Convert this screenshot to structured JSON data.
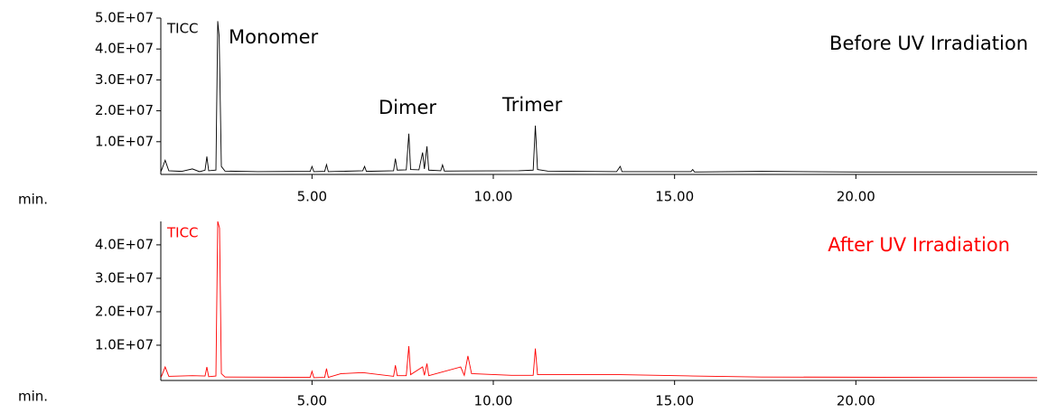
{
  "chart_data": [
    {
      "type": "line",
      "title": "Before UV Irradiation",
      "annotations": [
        "TICC",
        "Monomer",
        "Dimer",
        "Trimer"
      ],
      "xlabel": "min.",
      "color": "#000000",
      "x": [
        0.84,
        0.95,
        1.05,
        1.4,
        1.7,
        1.9,
        2.05,
        2.1,
        2.15,
        2.35,
        2.4,
        2.44,
        2.5,
        2.6,
        3.5,
        4.95,
        5.0,
        5.05,
        5.35,
        5.4,
        5.45,
        6.4,
        6.45,
        6.5,
        7.25,
        7.3,
        7.35,
        7.6,
        7.67,
        7.72,
        7.95,
        8.05,
        8.1,
        8.17,
        8.22,
        8.55,
        8.6,
        8.65,
        10.7,
        11.1,
        11.16,
        11.22,
        11.5,
        13.4,
        13.5,
        13.55,
        15.45,
        15.5,
        15.55,
        17.4,
        20,
        25
      ],
      "values": [
        500000,
        4000000,
        600000,
        400000,
        1200000,
        300000,
        800000,
        5200000,
        600000,
        800000,
        49000000,
        44000000,
        2000000,
        500000,
        300000,
        400000,
        2000000,
        300000,
        400000,
        2600000,
        300000,
        600000,
        2000000,
        400000,
        600000,
        4500000,
        800000,
        900000,
        12600000,
        1000000,
        900000,
        6500000,
        1200000,
        8500000,
        800000,
        600000,
        2500000,
        500000,
        600000,
        800000,
        15200000,
        1000000,
        500000,
        300000,
        2000000,
        300000,
        300000,
        1000000,
        200000,
        400000,
        200000,
        200000
      ],
      "xlim": [
        0.83,
        25.0
      ],
      "ylim": [
        0,
        50000000
      ],
      "xticks": [
        {
          "value": 5,
          "label": "5.00"
        },
        {
          "value": 10,
          "label": "10.00"
        },
        {
          "value": 15,
          "label": "15.00"
        },
        {
          "value": 20,
          "label": "20.00"
        }
      ],
      "yticks": [
        {
          "value": 10000000,
          "label": "1.0E+07"
        },
        {
          "value": 20000000,
          "label": "2.0E+07"
        },
        {
          "value": 30000000,
          "label": "3.0E+07"
        },
        {
          "value": 40000000,
          "label": "4.0E+07"
        },
        {
          "value": 50000000,
          "label": "5.0E+07"
        }
      ]
    },
    {
      "type": "line",
      "title": "After UV Irradiation",
      "annotations": [
        "TICC"
      ],
      "xlabel": "min.",
      "color": "#ff0000",
      "x": [
        0.84,
        0.95,
        1.05,
        1.7,
        2.05,
        2.1,
        2.15,
        2.35,
        2.4,
        2.45,
        2.5,
        2.6,
        4.95,
        5.0,
        5.05,
        5.35,
        5.4,
        5.45,
        5.8,
        6.4,
        7.25,
        7.3,
        7.35,
        7.6,
        7.67,
        7.72,
        8.05,
        8.1,
        8.17,
        8.22,
        9.1,
        9.2,
        9.3,
        9.4,
        10.5,
        11.1,
        11.16,
        11.22,
        13.5,
        15.5,
        17.4,
        25
      ],
      "values": [
        500000,
        3500000,
        700000,
        900000,
        800000,
        3500000,
        600000,
        800000,
        47000000,
        45000000,
        1500000,
        500000,
        400000,
        2200000,
        300000,
        400000,
        3000000,
        400000,
        1500000,
        1800000,
        700000,
        4000000,
        900000,
        900000,
        9700000,
        1200000,
        3500000,
        1000000,
        4500000,
        900000,
        3500000,
        1000000,
        6800000,
        1500000,
        1000000,
        1000000,
        9000000,
        1200000,
        1200000,
        800000,
        500000,
        300000
      ],
      "xlim": [
        0.83,
        25.0
      ],
      "ylim": [
        0,
        47000000
      ],
      "xticks": [
        {
          "value": 5,
          "label": "5.00"
        },
        {
          "value": 10,
          "label": "10.00"
        },
        {
          "value": 15,
          "label": "15.00"
        },
        {
          "value": 20,
          "label": "20.00"
        }
      ],
      "yticks": [
        {
          "value": 10000000,
          "label": "1.0E+07"
        },
        {
          "value": 20000000,
          "label": "2.0E+07"
        },
        {
          "value": 30000000,
          "label": "3.0E+07"
        },
        {
          "value": 40000000,
          "label": "4.0E+07"
        }
      ]
    }
  ]
}
